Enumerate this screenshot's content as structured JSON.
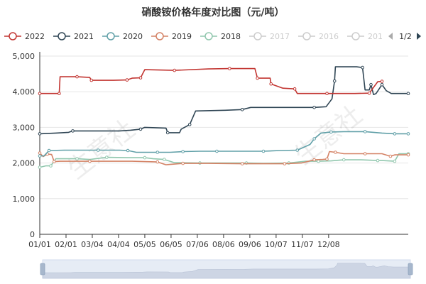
{
  "chart_data": {
    "type": "line",
    "title": "硝酸铵价格年度对比图（元/吨）",
    "legend": {
      "placement": "top",
      "page_indicator": "1/2",
      "items": [
        {
          "name": "2022",
          "active": true
        },
        {
          "name": "2021",
          "active": true
        },
        {
          "name": "2020",
          "active": true
        },
        {
          "name": "2019",
          "active": true
        },
        {
          "name": "2018",
          "active": true
        },
        {
          "name": "2017",
          "active": false
        },
        {
          "name": "2016",
          "active": false
        },
        {
          "name": "201",
          "active": false
        }
      ]
    },
    "x_ticks": [
      "01/01",
      "02/01",
      "03/04",
      "04/04",
      "05/05",
      "06/05",
      "07/06",
      "08/06",
      "09/06",
      "10/07",
      "11/07",
      "12/08"
    ],
    "ylim": [
      0,
      5000
    ],
    "y_ticks": [
      "0",
      "1,000",
      "2,000",
      "3,000",
      "4,000",
      "5,000"
    ],
    "grid": true,
    "watermark": "生意社",
    "series": [
      {
        "name": "2022",
        "color": "#c23531",
        "points": [
          [
            1,
            3950
          ],
          [
            12,
            3950
          ],
          [
            24,
            3950
          ],
          [
            25,
            4420
          ],
          [
            45,
            4420
          ],
          [
            60,
            4400
          ],
          [
            62,
            4320
          ],
          [
            88,
            4320
          ],
          [
            104,
            4330
          ],
          [
            110,
            4380
          ],
          [
            120,
            4390
          ],
          [
            125,
            4620
          ],
          [
            160,
            4600
          ],
          [
            200,
            4640
          ],
          [
            225,
            4650
          ],
          [
            255,
            4650
          ],
          [
            258,
            4380
          ],
          [
            273,
            4380
          ],
          [
            274,
            4220
          ],
          [
            288,
            4100
          ],
          [
            302,
            4080
          ],
          [
            305,
            3950
          ],
          [
            340,
            3950
          ],
          [
            373,
            3950
          ],
          [
            390,
            3960
          ],
          [
            400,
            4280
          ],
          [
            405,
            4290
          ]
        ]
      },
      {
        "name": "2021",
        "color": "#2f4554",
        "points": [
          [
            1,
            2820
          ],
          [
            20,
            2840
          ],
          [
            35,
            2860
          ],
          [
            40,
            2900
          ],
          [
            95,
            2900
          ],
          [
            108,
            2920
          ],
          [
            120,
            2950
          ],
          [
            125,
            3000
          ],
          [
            150,
            2980
          ],
          [
            152,
            2850
          ],
          [
            166,
            2850
          ],
          [
            168,
            2950
          ],
          [
            178,
            3080
          ],
          [
            185,
            3460
          ],
          [
            220,
            3480
          ],
          [
            240,
            3500
          ],
          [
            250,
            3560
          ],
          [
            290,
            3560
          ],
          [
            325,
            3560
          ],
          [
            339,
            3580
          ],
          [
            346,
            3800
          ],
          [
            349,
            4300
          ],
          [
            350,
            4700
          ],
          [
            375,
            4700
          ],
          [
            382,
            4680
          ],
          [
            385,
            4050
          ],
          [
            390,
            4050
          ],
          [
            392,
            4200
          ],
          [
            395,
            3920
          ],
          [
            398,
            3950
          ],
          [
            405,
            4200
          ],
          [
            410,
            4030
          ],
          [
            416,
            3950
          ],
          [
            436,
            3950
          ]
        ]
      },
      {
        "name": "2020",
        "color": "#61a0a8",
        "points": [
          [
            1,
            2200
          ],
          [
            6,
            2200
          ],
          [
            12,
            2350
          ],
          [
            30,
            2360
          ],
          [
            70,
            2360
          ],
          [
            95,
            2360
          ],
          [
            105,
            2350
          ],
          [
            115,
            2300
          ],
          [
            140,
            2300
          ],
          [
            155,
            2300
          ],
          [
            170,
            2320
          ],
          [
            190,
            2330
          ],
          [
            210,
            2330
          ],
          [
            240,
            2330
          ],
          [
            265,
            2330
          ],
          [
            285,
            2350
          ],
          [
            305,
            2360
          ],
          [
            320,
            2520
          ],
          [
            325,
            2680
          ],
          [
            333,
            2840
          ],
          [
            345,
            2870
          ],
          [
            360,
            2880
          ],
          [
            385,
            2880
          ],
          [
            405,
            2840
          ],
          [
            420,
            2820
          ],
          [
            436,
            2820
          ]
        ]
      },
      {
        "name": "2019",
        "color": "#d48265",
        "points": [
          [
            1,
            2280
          ],
          [
            5,
            2180
          ],
          [
            10,
            2250
          ],
          [
            15,
            2240
          ],
          [
            18,
            2040
          ],
          [
            25,
            2050
          ],
          [
            60,
            2050
          ],
          [
            110,
            2050
          ],
          [
            140,
            2030
          ],
          [
            150,
            1950
          ],
          [
            170,
            1990
          ],
          [
            200,
            1990
          ],
          [
            240,
            1980
          ],
          [
            265,
            1980
          ],
          [
            290,
            1980
          ],
          [
            310,
            2000
          ],
          [
            325,
            2090
          ],
          [
            335,
            2100
          ],
          [
            340,
            2110
          ],
          [
            343,
            2320
          ],
          [
            350,
            2300
          ],
          [
            360,
            2260
          ],
          [
            385,
            2260
          ],
          [
            405,
            2260
          ],
          [
            415,
            2190
          ],
          [
            420,
            2230
          ],
          [
            436,
            2230
          ]
        ]
      },
      {
        "name": "2018",
        "color": "#91c7ae",
        "points": [
          [
            1,
            1880
          ],
          [
            8,
            1920
          ],
          [
            14,
            1920
          ],
          [
            20,
            2120
          ],
          [
            45,
            2120
          ],
          [
            60,
            2100
          ],
          [
            80,
            2160
          ],
          [
            105,
            2150
          ],
          [
            125,
            2150
          ],
          [
            135,
            2120
          ],
          [
            148,
            2100
          ],
          [
            160,
            2010
          ],
          [
            190,
            2000
          ],
          [
            225,
            2000
          ],
          [
            245,
            2000
          ],
          [
            265,
            1990
          ],
          [
            295,
            2000
          ],
          [
            315,
            2050
          ],
          [
            330,
            2050
          ],
          [
            345,
            2060
          ],
          [
            360,
            2090
          ],
          [
            380,
            2090
          ],
          [
            400,
            2070
          ],
          [
            405,
            2070
          ],
          [
            420,
            2050
          ],
          [
            425,
            2260
          ],
          [
            436,
            2260
          ]
        ]
      }
    ]
  }
}
